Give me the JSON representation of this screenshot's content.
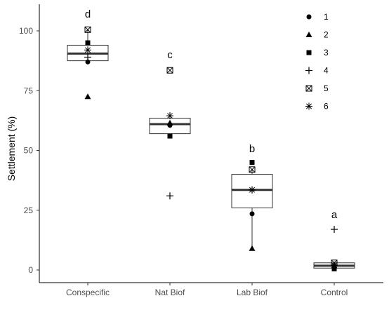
{
  "chart_data": {
    "type": "box",
    "title": "",
    "xlabel": "",
    "ylabel": "Settlement (%)",
    "ylim": [
      -5,
      111
    ],
    "yticks": [
      0,
      25,
      50,
      75,
      100
    ],
    "ytick_labels": [
      "0",
      "25",
      "50",
      "75",
      "100"
    ],
    "grid": false,
    "legend_position": "top-right",
    "legend": [
      "1",
      "2",
      "3",
      "4",
      "5",
      "6"
    ],
    "legend_shapes": [
      "circle",
      "triangle",
      "square",
      "plus",
      "boxed-x",
      "asterisk"
    ],
    "categories": [
      "Conspecific",
      "Nat Biof",
      "Lab Biof",
      "Control"
    ],
    "significance_letters": [
      "d",
      "c",
      "b",
      "a"
    ],
    "boxes": [
      {
        "min": 87,
        "q1": 87.5,
        "median": 90.5,
        "q3": 94,
        "max": 100.5
      },
      {
        "min": 56,
        "q1": 57,
        "median": 61,
        "q3": 63.5,
        "max": 64.5
      },
      {
        "min": 9,
        "q1": 26,
        "median": 33.5,
        "q3": 40,
        "max": 42
      },
      {
        "min": 0.5,
        "q1": 0.8,
        "median": 1.8,
        "q3": 3,
        "max": 3.5
      }
    ],
    "points": [
      {
        "category": "Conspecific",
        "series": "1",
        "value": 87
      },
      {
        "category": "Conspecific",
        "series": "2",
        "value": 72.5
      },
      {
        "category": "Conspecific",
        "series": "3",
        "value": 95
      },
      {
        "category": "Conspecific",
        "series": "4",
        "value": 89
      },
      {
        "category": "Conspecific",
        "series": "5",
        "value": 100.5
      },
      {
        "category": "Conspecific",
        "series": "6",
        "value": 92
      },
      {
        "category": "Nat Biof",
        "series": "1",
        "value": 60.5
      },
      {
        "category": "Nat Biof",
        "series": "2",
        "value": 61.5
      },
      {
        "category": "Nat Biof",
        "series": "3",
        "value": 56
      },
      {
        "category": "Nat Biof",
        "series": "4",
        "value": 31
      },
      {
        "category": "Nat Biof",
        "series": "5",
        "value": 83.5
      },
      {
        "category": "Nat Biof",
        "series": "6",
        "value": 64.5
      },
      {
        "category": "Lab Biof",
        "series": "1",
        "value": 23.5
      },
      {
        "category": "Lab Biof",
        "series": "2",
        "value": 9
      },
      {
        "category": "Lab Biof",
        "series": "3",
        "value": 45
      },
      {
        "category": "Lab Biof",
        "series": "4",
        "value": 33.5
      },
      {
        "category": "Lab Biof",
        "series": "5",
        "value": 42
      },
      {
        "category": "Lab Biof",
        "series": "6",
        "value": 33.5
      },
      {
        "category": "Control",
        "series": "1",
        "value": 0.8
      },
      {
        "category": "Control",
        "series": "2",
        "value": 1.8
      },
      {
        "category": "Control",
        "series": "3",
        "value": 0.5
      },
      {
        "category": "Control",
        "series": "4",
        "value": 17
      },
      {
        "category": "Control",
        "series": "5",
        "value": 3
      },
      {
        "category": "Control",
        "series": "6",
        "value": 2
      }
    ]
  }
}
